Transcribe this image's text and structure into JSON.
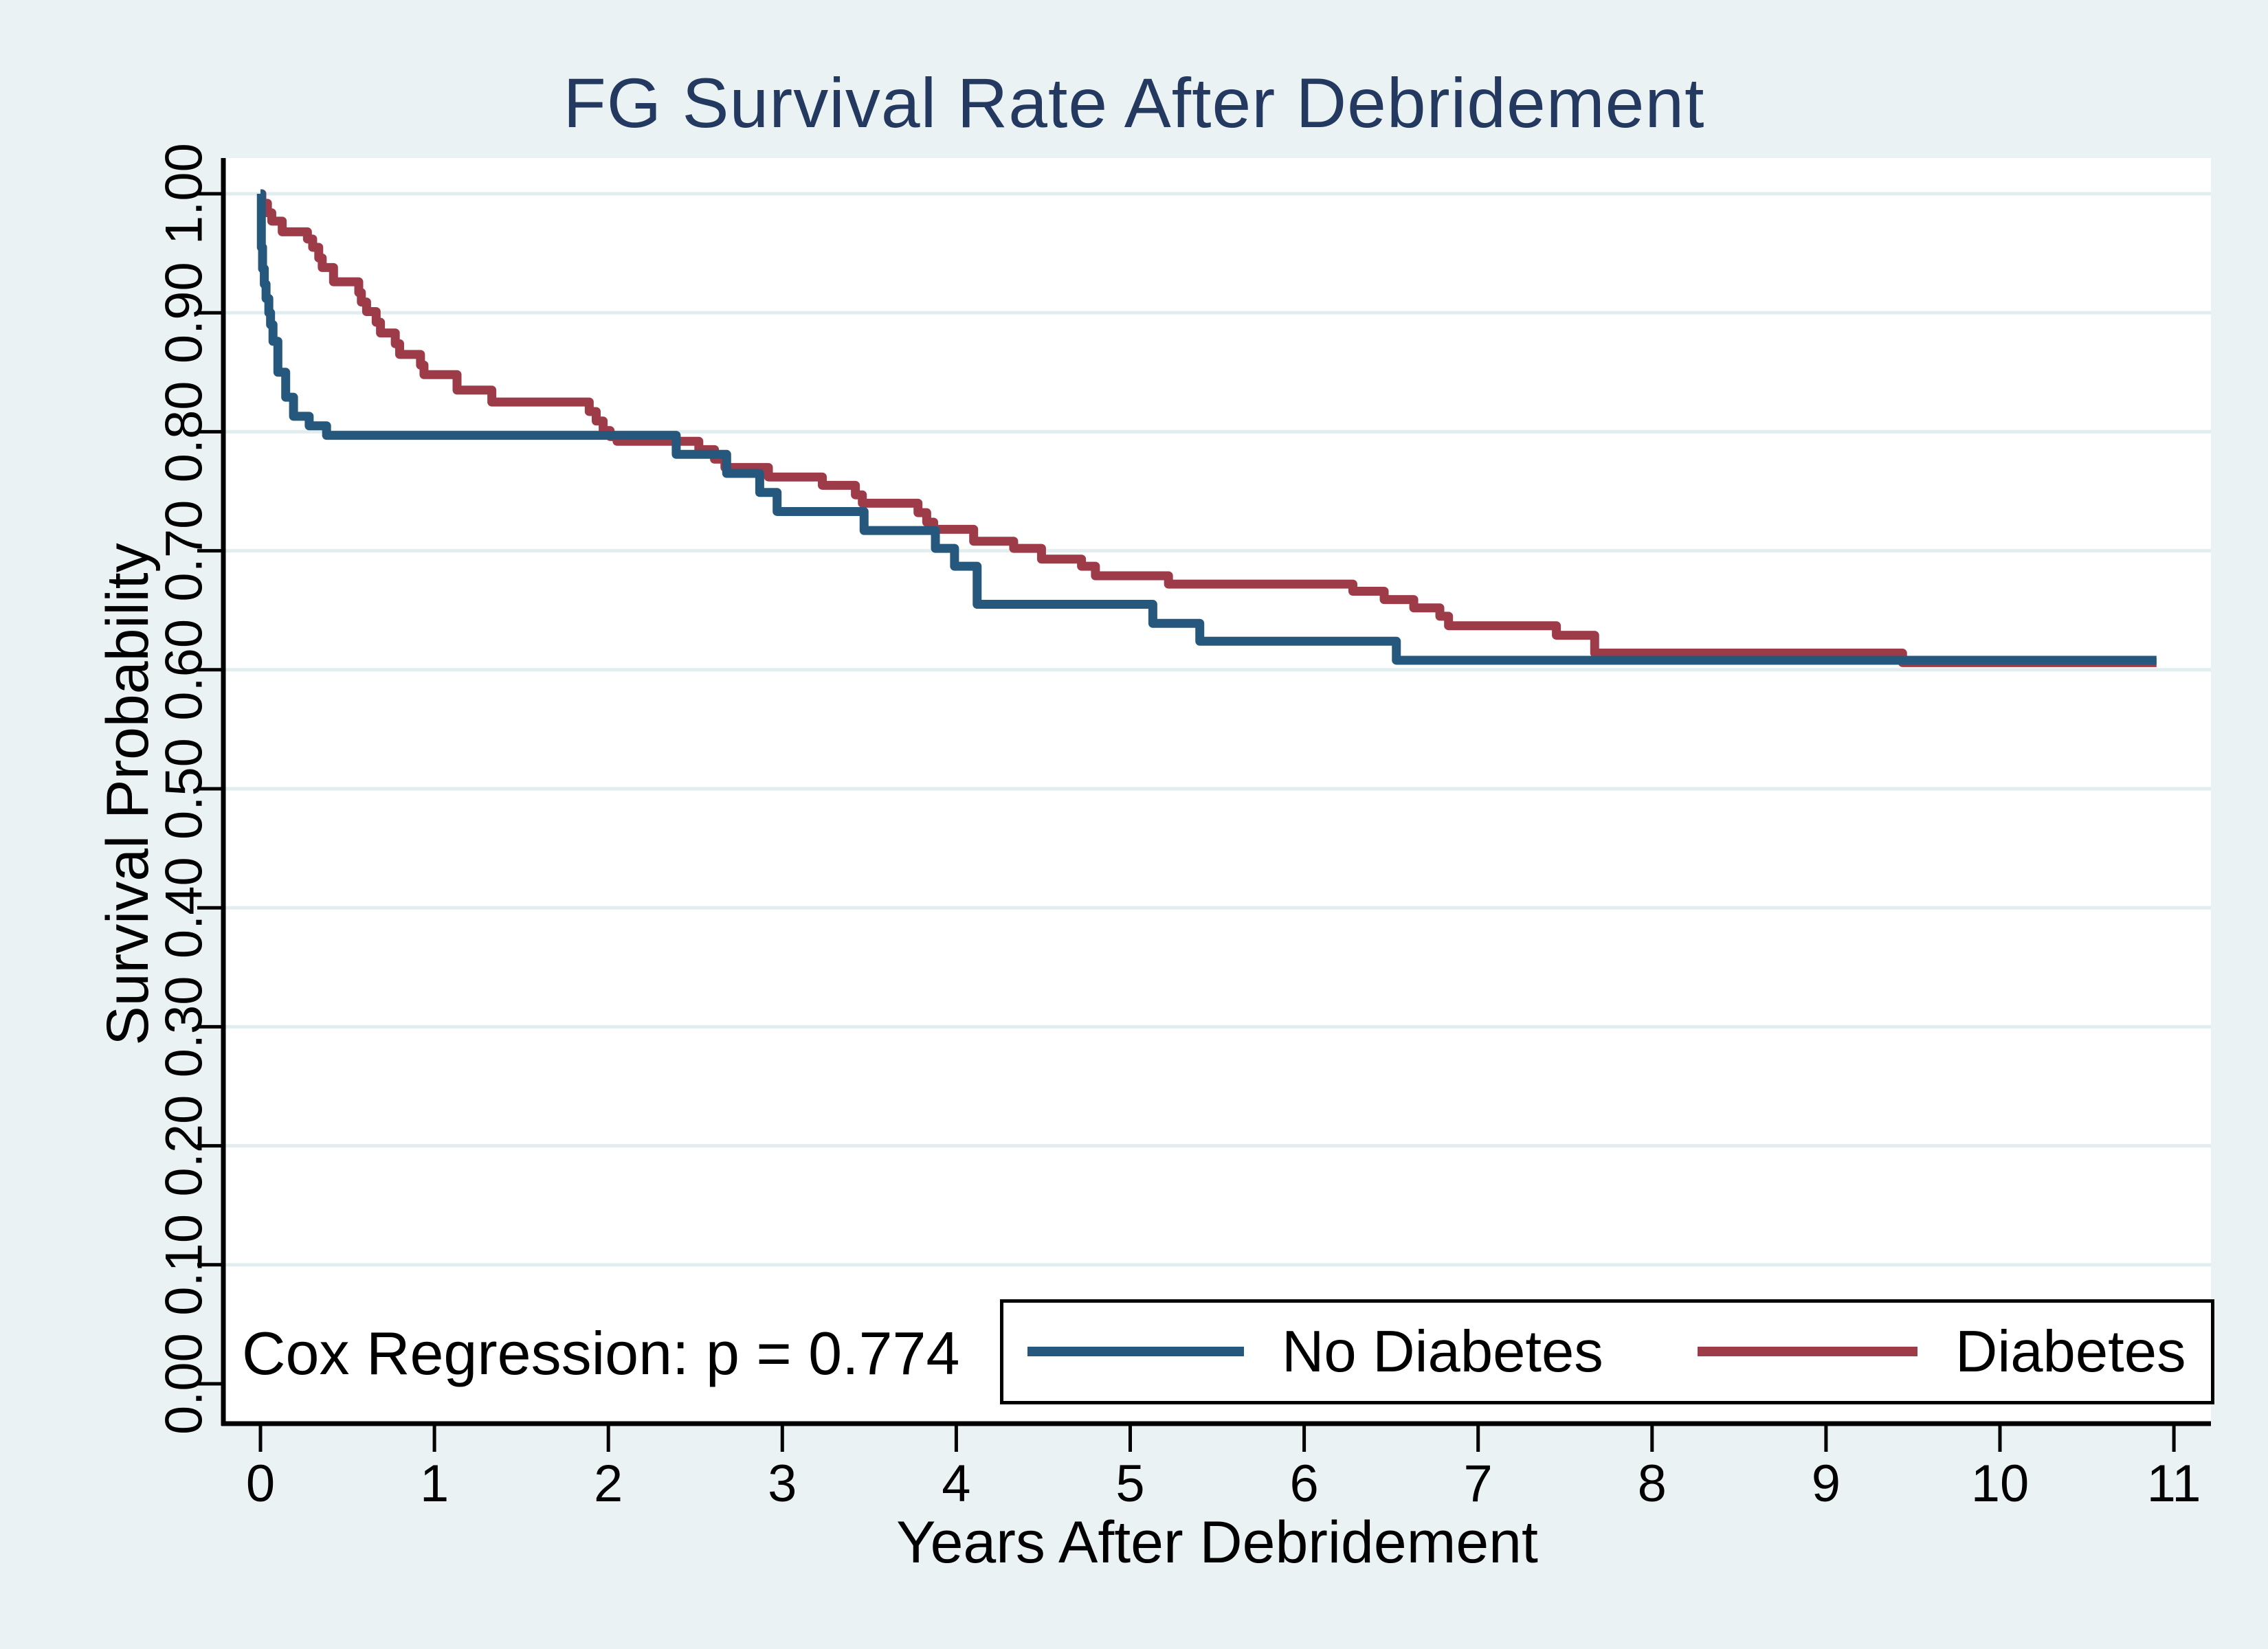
{
  "chart": {
    "title": "FG Survival Rate After Debridement",
    "annotation": "Cox Regression: p = 0.774",
    "p_value_text": "p = 0.774",
    "colors": {
      "page_background": "#eaf2f3",
      "plot_background": "#ffffff",
      "gridline": "#e2edf0",
      "axis": "#000000",
      "title": "#24395f",
      "no_diabetes_line": "#25587c",
      "diabetes_line": "#9d3c48"
    }
  },
  "chart_data": {
    "type": "line",
    "subtype": "kaplan-meier-step",
    "title": "FG Survival Rate After Debridement",
    "xlabel": "Years After Debridement",
    "ylabel": "Survival Probability",
    "xlim": [
      0,
      11
    ],
    "ylim": [
      0.0,
      1.0
    ],
    "x_ticks": [
      0,
      1,
      2,
      3,
      4,
      5,
      6,
      7,
      8,
      9,
      10,
      11
    ],
    "y_ticks": [
      "0.00",
      "0.10",
      "0.20",
      "0.30",
      "0.40",
      "0.50",
      "0.60",
      "0.70",
      "0.80",
      "0.90",
      "1.00"
    ],
    "y_tick_values": [
      0.0,
      0.1,
      0.2,
      0.3,
      0.4,
      0.5,
      0.6,
      0.7,
      0.8,
      0.9,
      1.0
    ],
    "grid": "horizontal",
    "annotation": "Cox Regression: p = 0.774",
    "legend_position": "inside-bottom-right",
    "curve_end_x": 10.9,
    "legend": {
      "items": [
        {
          "label": "No Diabetes",
          "color": "#25587c"
        },
        {
          "label": "Diabetes",
          "color": "#9d3c48"
        }
      ]
    },
    "series": [
      {
        "name": "Diabetes",
        "color": "#9d3c48",
        "points": [
          [
            0,
            1.0
          ],
          [
            0.008,
            0.992
          ],
          [
            0.04,
            0.984
          ],
          [
            0.065,
            0.977
          ],
          [
            0.125,
            0.968
          ],
          [
            0.27,
            0.962
          ],
          [
            0.3,
            0.955
          ],
          [
            0.335,
            0.946
          ],
          [
            0.355,
            0.938
          ],
          [
            0.42,
            0.926
          ],
          [
            0.565,
            0.917
          ],
          [
            0.58,
            0.909
          ],
          [
            0.61,
            0.901
          ],
          [
            0.665,
            0.892
          ],
          [
            0.69,
            0.883
          ],
          [
            0.775,
            0.874
          ],
          [
            0.8,
            0.865
          ],
          [
            0.92,
            0.856
          ],
          [
            0.94,
            0.848
          ],
          [
            1.13,
            0.835
          ],
          [
            1.33,
            0.825
          ],
          [
            1.89,
            0.817
          ],
          [
            1.93,
            0.809
          ],
          [
            1.97,
            0.801
          ],
          [
            2.01,
            0.796
          ],
          [
            2.05,
            0.792
          ],
          [
            2.52,
            0.785
          ],
          [
            2.61,
            0.777
          ],
          [
            2.67,
            0.77
          ],
          [
            2.92,
            0.762
          ],
          [
            3.23,
            0.755
          ],
          [
            3.42,
            0.747
          ],
          [
            3.46,
            0.74
          ],
          [
            3.78,
            0.732
          ],
          [
            3.83,
            0.724
          ],
          [
            3.87,
            0.718
          ],
          [
            4.1,
            0.708
          ],
          [
            4.33,
            0.702
          ],
          [
            4.49,
            0.693
          ],
          [
            4.72,
            0.687
          ],
          [
            4.8,
            0.679
          ],
          [
            5.22,
            0.672
          ],
          [
            6.28,
            0.666
          ],
          [
            6.46,
            0.659
          ],
          [
            6.63,
            0.652
          ],
          [
            6.78,
            0.645
          ],
          [
            6.83,
            0.637
          ],
          [
            7.45,
            0.629
          ],
          [
            7.67,
            0.614
          ],
          [
            9.44,
            0.606
          ]
        ]
      },
      {
        "name": "No Diabetes",
        "color": "#25587c",
        "points": [
          [
            0,
            1.0
          ],
          [
            0.005,
            0.955
          ],
          [
            0.012,
            0.937
          ],
          [
            0.022,
            0.924
          ],
          [
            0.032,
            0.912
          ],
          [
            0.048,
            0.9
          ],
          [
            0.058,
            0.89
          ],
          [
            0.072,
            0.876
          ],
          [
            0.1,
            0.85
          ],
          [
            0.145,
            0.829
          ],
          [
            0.19,
            0.813
          ],
          [
            0.28,
            0.805
          ],
          [
            0.38,
            0.797
          ],
          [
            2.39,
            0.781
          ],
          [
            2.68,
            0.765
          ],
          [
            2.87,
            0.749
          ],
          [
            2.97,
            0.733
          ],
          [
            3.47,
            0.717
          ],
          [
            3.88,
            0.702
          ],
          [
            3.99,
            0.687
          ],
          [
            4.12,
            0.655
          ],
          [
            5.13,
            0.639
          ],
          [
            5.4,
            0.624
          ],
          [
            6.53,
            0.608
          ]
        ]
      }
    ]
  }
}
